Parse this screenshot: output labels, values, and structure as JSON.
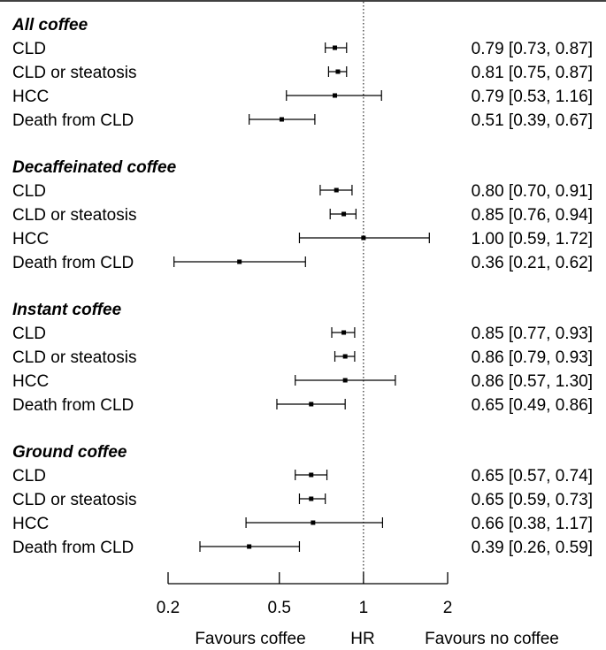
{
  "chart_data": {
    "type": "forest",
    "x_scale": "log",
    "xlim": [
      0.2,
      2
    ],
    "reference_line": 1,
    "x_ticks": [
      0.2,
      0.5,
      1,
      2
    ],
    "x_tick_labels": [
      "0.2",
      "0.5",
      "1",
      "2"
    ],
    "footer": {
      "left": "Favours coffee",
      "center": "HR",
      "right": "Favours no coffee"
    },
    "groups": [
      {
        "title": "All coffee",
        "rows": [
          {
            "label": "CLD",
            "hr": 0.79,
            "lo": 0.73,
            "hi": 0.87,
            "text": "0.79 [0.73, 0.87]"
          },
          {
            "label": "CLD or steatosis",
            "hr": 0.81,
            "lo": 0.75,
            "hi": 0.87,
            "text": "0.81 [0.75, 0.87]"
          },
          {
            "label": "HCC",
            "hr": 0.79,
            "lo": 0.53,
            "hi": 1.16,
            "text": "0.79 [0.53, 1.16]"
          },
          {
            "label": "Death from CLD",
            "hr": 0.51,
            "lo": 0.39,
            "hi": 0.67,
            "text": "0.51 [0.39, 0.67]"
          }
        ]
      },
      {
        "title": "Decaffeinated coffee",
        "rows": [
          {
            "label": "CLD",
            "hr": 0.8,
            "lo": 0.7,
            "hi": 0.91,
            "text": "0.80 [0.70, 0.91]"
          },
          {
            "label": "CLD or steatosis",
            "hr": 0.85,
            "lo": 0.76,
            "hi": 0.94,
            "text": "0.85 [0.76, 0.94]"
          },
          {
            "label": "HCC",
            "hr": 1.0,
            "lo": 0.59,
            "hi": 1.72,
            "text": "1.00 [0.59, 1.72]"
          },
          {
            "label": "Death from CLD",
            "hr": 0.36,
            "lo": 0.21,
            "hi": 0.62,
            "text": "0.36 [0.21, 0.62]"
          }
        ]
      },
      {
        "title": "Instant coffee",
        "rows": [
          {
            "label": "CLD",
            "hr": 0.85,
            "lo": 0.77,
            "hi": 0.93,
            "text": "0.85 [0.77, 0.93]"
          },
          {
            "label": "CLD or steatosis",
            "hr": 0.86,
            "lo": 0.79,
            "hi": 0.93,
            "text": "0.86 [0.79, 0.93]"
          },
          {
            "label": "HCC",
            "hr": 0.86,
            "lo": 0.57,
            "hi": 1.3,
            "text": "0.86 [0.57, 1.30]"
          },
          {
            "label": "Death from CLD",
            "hr": 0.65,
            "lo": 0.49,
            "hi": 0.86,
            "text": "0.65 [0.49, 0.86]"
          }
        ]
      },
      {
        "title": "Ground coffee",
        "rows": [
          {
            "label": "CLD",
            "hr": 0.65,
            "lo": 0.57,
            "hi": 0.74,
            "text": "0.65 [0.57, 0.74]"
          },
          {
            "label": "CLD or steatosis",
            "hr": 0.65,
            "lo": 0.59,
            "hi": 0.73,
            "text": "0.65 [0.59, 0.73]"
          },
          {
            "label": "HCC",
            "hr": 0.66,
            "lo": 0.38,
            "hi": 1.17,
            "text": "0.66 [0.38, 1.17]"
          },
          {
            "label": "Death from CLD",
            "hr": 0.39,
            "lo": 0.26,
            "hi": 0.59,
            "text": "0.39 [0.26, 0.59]"
          }
        ]
      }
    ]
  }
}
